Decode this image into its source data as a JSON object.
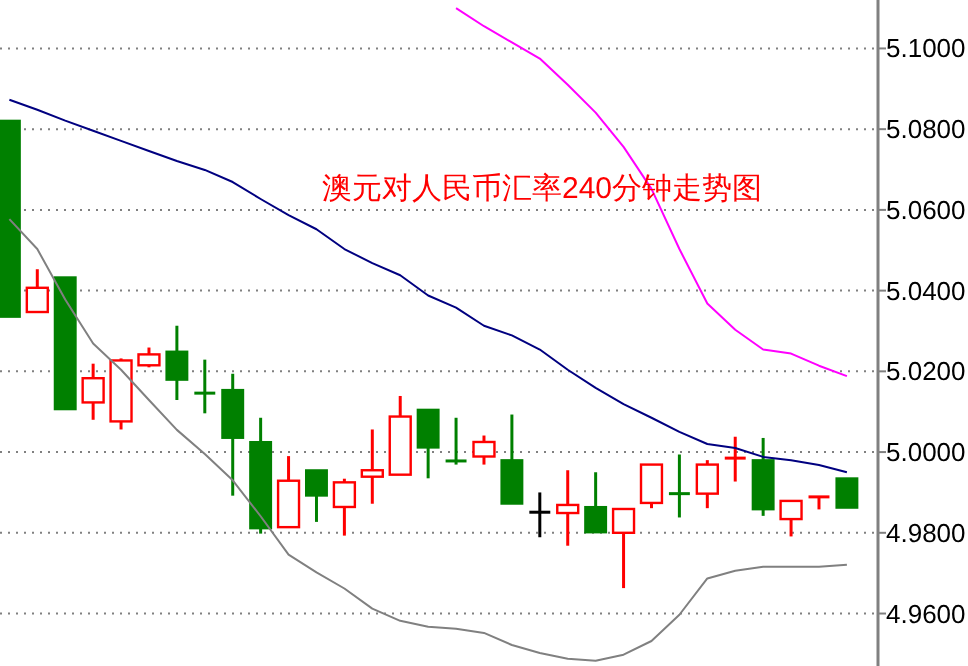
{
  "chart_data": {
    "type": "candlestick",
    "title": "澳元对人民币汇率240分钟走势图",
    "categories": [
      null,
      null,
      null,
      null,
      null,
      null,
      null,
      null,
      null,
      null,
      null,
      null,
      null,
      null,
      null,
      null,
      null,
      null,
      null,
      null,
      null,
      null,
      null,
      null,
      null,
      null,
      null,
      null,
      null,
      null,
      null
    ],
    "ohlc": [
      [
        5.0821,
        5.0821,
        5.0335,
        5.0335
      ],
      [
        5.0347,
        5.0453,
        5.0347,
        5.0407
      ],
      [
        5.0433,
        5.0433,
        5.0106,
        5.0106
      ],
      [
        5.0123,
        5.0219,
        5.008,
        5.0183
      ],
      [
        5.0076,
        5.0232,
        5.0056,
        5.0227
      ],
      [
        5.0215,
        5.0259,
        5.021,
        5.0242
      ],
      [
        5.0249,
        5.0313,
        5.0129,
        5.0179
      ],
      [
        5.0146,
        5.0229,
        5.0096,
        5.0146
      ],
      [
        5.0154,
        5.0194,
        4.9892,
        5.0035
      ],
      [
        5.0025,
        5.0085,
        4.9798,
        4.9811
      ],
      [
        4.9814,
        4.999,
        4.9814,
        4.9929
      ],
      [
        4.9955,
        4.9955,
        4.9827,
        4.9892
      ],
      [
        4.9864,
        4.9934,
        4.9793,
        4.9925
      ],
      [
        4.9939,
        5.0056,
        4.9872,
        4.9955
      ],
      [
        4.9944,
        5.0139,
        4.9944,
        5.0088
      ],
      [
        5.0105,
        5.0105,
        4.9935,
        5.0011
      ],
      [
        4.9978,
        5.0085,
        4.9969,
        4.9978
      ],
      [
        4.9989,
        5.0041,
        4.9969,
        5.0025
      ],
      [
        4.998,
        5.0093,
        4.9872,
        4.9872
      ],
      [
        4.9851,
        4.99,
        4.9789,
        4.9851
      ],
      [
        4.9849,
        4.9955,
        4.9768,
        4.9869
      ],
      [
        4.9864,
        4.995,
        4.9801,
        4.9801
      ],
      [
        4.98,
        4.9859,
        4.9663,
        4.9859
      ],
      [
        4.9874,
        4.9969,
        4.9861,
        4.9969
      ],
      [
        4.9897,
        4.9994,
        4.9838,
        4.9897
      ],
      [
        4.9897,
        4.998,
        4.9861,
        4.9969
      ],
      [
        4.9985,
        5.0038,
        4.9927,
        4.9985
      ],
      [
        4.998,
        5.0035,
        4.9842,
        4.9858
      ],
      [
        4.9834,
        4.9879,
        4.9791,
        4.9879
      ],
      [
        4.9889,
        4.9889,
        4.9858,
        4.9889
      ],
      [
        4.9935,
        4.9935,
        4.9862,
        4.9862
      ]
    ],
    "colors": [
      "#008000",
      "#ff0000",
      "#008000",
      "#ff0000",
      "#ff0000",
      "#ff0000",
      "#008000",
      "#008000",
      "#008000",
      "#008000",
      "#ff0000",
      "#008000",
      "#ff0000",
      "#ff0000",
      "#ff0000",
      "#008000",
      "#008000",
      "#ff0000",
      "#008000",
      "#000000",
      "#ff0000",
      "#008000",
      "#ff0000",
      "#ff0000",
      "#008000",
      "#ff0000",
      "#ff0000",
      "#008000",
      "#ff0000",
      "#ff0000",
      "#008000"
    ],
    "series": [
      {
        "type": "line",
        "color": "#000080",
        "values": [
          5.0873,
          5.0848,
          5.0821,
          5.0796,
          5.0771,
          5.0746,
          5.0721,
          5.0699,
          5.0669,
          5.0627,
          5.0587,
          5.0552,
          5.0503,
          5.0468,
          5.0438,
          5.0388,
          5.0358,
          5.0313,
          5.0289,
          5.0254,
          5.0204,
          5.0159,
          5.0119,
          5.0085,
          5.005,
          5.002,
          5.001,
          4.9988,
          4.998,
          4.9968,
          4.995
        ]
      },
      {
        "type": "line",
        "color": "#ff00ff",
        "values": [
          null,
          null,
          null,
          null,
          null,
          null,
          null,
          null,
          null,
          null,
          null,
          null,
          null,
          null,
          null,
          null,
          5.11,
          5.1055,
          5.1015,
          5.0975,
          5.091,
          5.0841,
          5.0756,
          5.0652,
          5.0503,
          5.0368,
          5.0303,
          5.0254,
          5.0244,
          5.0214,
          5.0188
        ]
      },
      {
        "type": "line",
        "color": "#808080",
        "values": [
          5.0577,
          5.0503,
          5.0378,
          5.0269,
          5.0204,
          5.0129,
          5.0055,
          4.9995,
          4.993,
          4.9841,
          4.9746,
          4.9702,
          4.9662,
          4.9612,
          4.9582,
          4.9567,
          4.9562,
          4.9552,
          4.9522,
          4.9502,
          4.9488,
          4.9483,
          4.9498,
          4.9532,
          4.9597,
          4.9687,
          4.9706,
          4.9716,
          4.9716,
          4.9716,
          4.9721
        ]
      }
    ],
    "ylim": [
      4.947,
      5.112
    ],
    "yticks": [
      {
        "value": 4.96,
        "label": "4.9600"
      },
      {
        "value": 4.98,
        "label": "4.9800"
      },
      {
        "value": 5.0,
        "label": "5.0000"
      },
      {
        "value": 5.02,
        "label": "5.0200"
      },
      {
        "value": 5.04,
        "label": "5.0400"
      },
      {
        "value": 5.06,
        "label": "5.0600"
      },
      {
        "value": 5.08,
        "label": "5.0800"
      },
      {
        "value": 5.1,
        "label": "5.1000"
      }
    ],
    "grid": "y",
    "tick_labels": "y"
  }
}
